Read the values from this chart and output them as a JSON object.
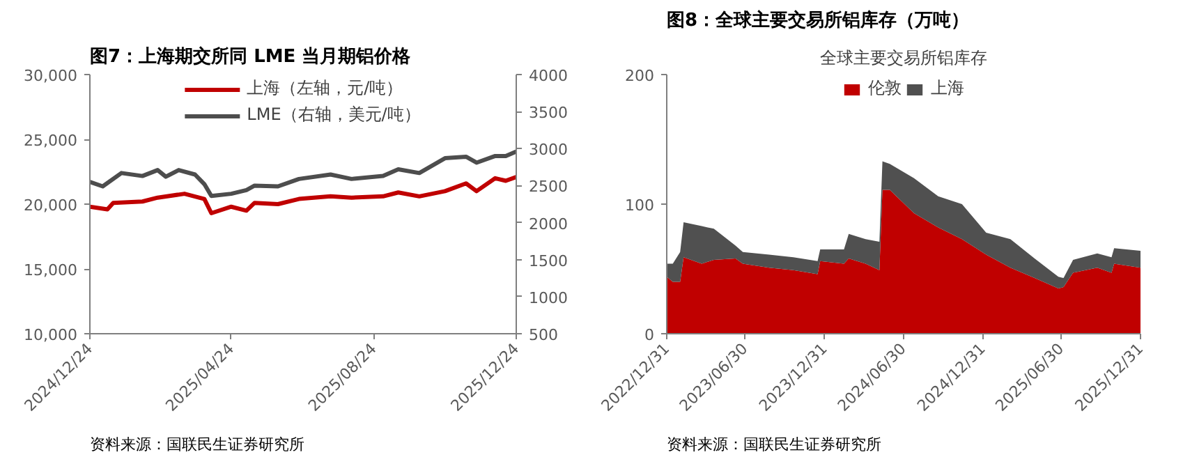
{
  "chart_data": [
    {
      "type": "line",
      "title": "图7：上海期交所同 LME 当月期铝价格",
      "annotations": [
        "资料来源：国联民生证券研究所"
      ],
      "legend": "top",
      "grid": false,
      "marker": "none",
      "line_style": "solid",
      "ylim": [
        10000,
        30000
      ],
      "yticks": [
        {
          "value": 10000,
          "label": "10,000"
        },
        {
          "value": 15000,
          "label": "15,000"
        },
        {
          "value": 20000,
          "label": "20,000"
        },
        {
          "value": 25000,
          "label": "25,000"
        },
        {
          "value": 30000,
          "label": "30,000"
        }
      ],
      "y2lim": [
        500,
        4000
      ],
      "y2ticks": [
        500,
        1000,
        1500,
        2000,
        2500,
        3000,
        3500,
        4000
      ],
      "xlim": [
        "2024-12-24",
        "2025-12-24"
      ],
      "xticks": [
        {
          "value": "2024-12-24",
          "label": "2024/12/24"
        },
        {
          "value": "2025-04-24",
          "label": "2025/04/24"
        },
        {
          "value": "2025-08-24",
          "label": "2025/08/24"
        },
        {
          "value": "2025-12-24",
          "label": "2025/12/24"
        }
      ],
      "series": [
        {
          "name": "上海（左轴，元/吨）",
          "color": "#c00000",
          "x": [
            "2024-12-24",
            "2025-01-08",
            "2025-01-13",
            "2025-02-07",
            "2025-02-20",
            "2025-03-15",
            "2025-04-01",
            "2025-04-07",
            "2025-04-24",
            "2025-05-07",
            "2025-05-14",
            "2025-06-03",
            "2025-06-21",
            "2025-07-18",
            "2025-08-05",
            "2025-09-01",
            "2025-09-14",
            "2025-10-02",
            "2025-10-24",
            "2025-11-11",
            "2025-11-20",
            "2025-12-06",
            "2025-12-15",
            "2025-12-24"
          ],
          "values": [
            19800,
            19600,
            20100,
            20200,
            20500,
            20800,
            20400,
            19300,
            19800,
            19500,
            20100,
            20000,
            20400,
            20600,
            20500,
            20600,
            20900,
            20600,
            21000,
            21600,
            21000,
            22000,
            21800,
            22100
          ]
        },
        {
          "name": "LME（右轴，美元/吨）",
          "color": "#4d4d4d",
          "axis": "y2",
          "x": [
            "2024-12-24",
            "2025-01-04",
            "2025-01-20",
            "2025-02-07",
            "2025-02-20",
            "2025-02-27",
            "2025-03-10",
            "2025-03-24",
            "2025-04-01",
            "2025-04-07",
            "2025-04-24",
            "2025-05-07",
            "2025-05-14",
            "2025-06-03",
            "2025-06-21",
            "2025-07-18",
            "2025-08-05",
            "2025-09-01",
            "2025-09-14",
            "2025-10-02",
            "2025-10-24",
            "2025-11-11",
            "2025-11-20",
            "2025-12-06",
            "2025-12-15",
            "2025-12-24"
          ],
          "values": [
            2550,
            2490,
            2670,
            2630,
            2710,
            2620,
            2710,
            2650,
            2520,
            2360,
            2390,
            2440,
            2500,
            2490,
            2590,
            2650,
            2590,
            2630,
            2720,
            2670,
            2870,
            2890,
            2810,
            2900,
            2900,
            2960
          ]
        }
      ]
    },
    {
      "type": "area",
      "stacked": true,
      "title": "图8：全球主要交易所铝库存（万吨）",
      "subtitle": "全球主要交易所铝库存",
      "annotations": [
        "资料来源：国联民生证券研究所"
      ],
      "legend": "top",
      "grid": false,
      "ylim": [
        0,
        200
      ],
      "yticks": [
        0,
        100,
        200
      ],
      "xlim": [
        "2022-12-31",
        "2025-12-31"
      ],
      "xticks": [
        {
          "value": "2022-12-31",
          "label": "2022/12/31"
        },
        {
          "value": "2023-06-30",
          "label": "2023/06/30"
        },
        {
          "value": "2023-12-31",
          "label": "2023/12/31"
        },
        {
          "value": "2024-06-30",
          "label": "2024/06/30"
        },
        {
          "value": "2024-12-31",
          "label": "2024/12/31"
        },
        {
          "value": "2025-06-30",
          "label": "2025/06/30"
        },
        {
          "value": "2025-12-31",
          "label": "2025/12/31"
        }
      ],
      "x": [
        "2022-12-31",
        "2023-01-14",
        "2023-01-31",
        "2023-02-08",
        "2023-03-22",
        "2023-04-19",
        "2023-06-08",
        "2023-06-25",
        "2023-08-25",
        "2023-10-20",
        "2023-12-15",
        "2023-12-21",
        "2024-02-14",
        "2024-02-25",
        "2024-04-04",
        "2024-05-06",
        "2024-05-13",
        "2024-05-30",
        "2024-07-25",
        "2024-09-19",
        "2024-11-13",
        "2025-01-08",
        "2025-03-05",
        "2025-04-30",
        "2025-06-24",
        "2025-07-06",
        "2025-07-28",
        "2025-09-22",
        "2025-10-25",
        "2025-10-31",
        "2025-12-31"
      ],
      "series": [
        {
          "name": "伦敦",
          "color": "#c00000",
          "values": [
            44,
            40,
            40,
            59,
            54,
            57,
            58,
            54,
            51,
            49,
            46,
            56,
            54,
            58,
            54,
            49,
            111,
            111,
            93,
            82,
            73,
            61,
            51,
            43,
            35,
            36,
            47,
            51,
            47,
            54,
            51
          ]
        },
        {
          "name": "上海",
          "color": "#505050",
          "values": [
            10,
            14,
            23,
            27,
            29,
            24,
            10,
            9,
            10,
            10,
            10,
            9,
            11,
            19,
            19,
            22,
            22,
            20,
            27,
            24,
            27,
            17,
            22,
            15,
            9,
            7,
            10,
            11,
            12,
            12,
            13
          ]
        }
      ]
    }
  ]
}
